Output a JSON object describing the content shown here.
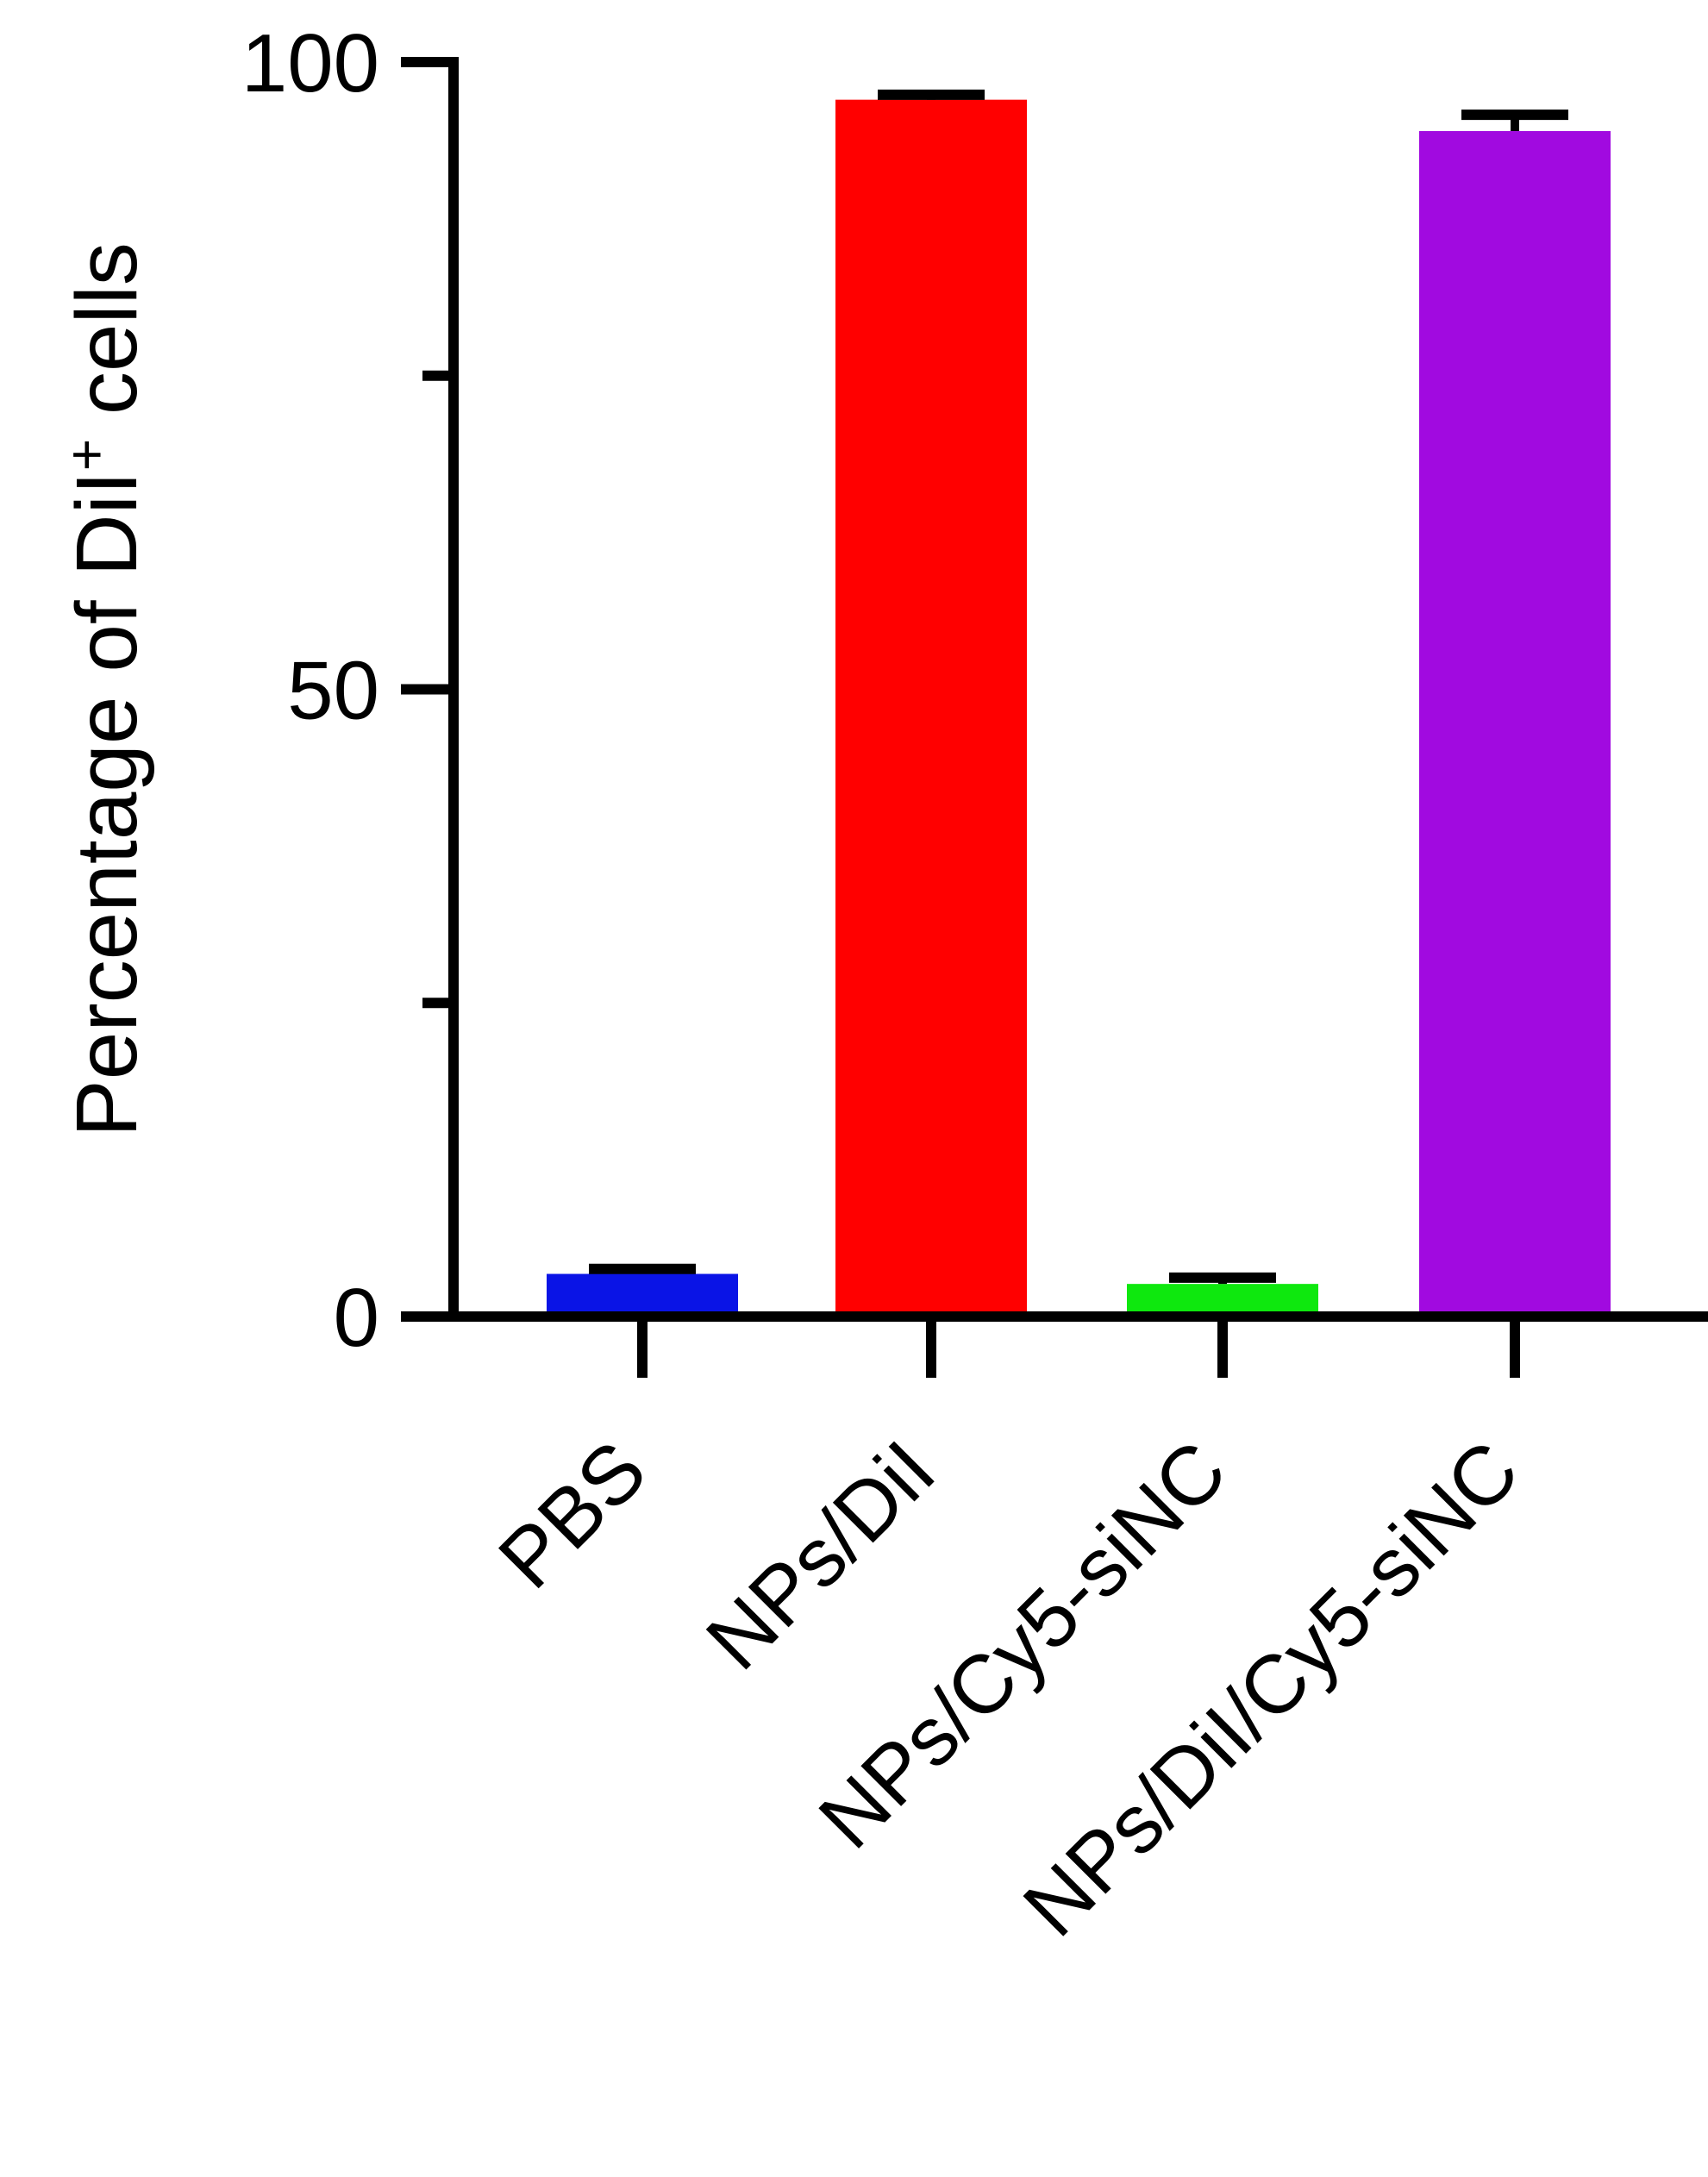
{
  "chart_data": {
    "type": "bar",
    "categories": [
      "PBS",
      "NPs/DiI",
      "NPs/Cy5-siNC",
      "NPs/DiI/Cy5-siNC"
    ],
    "values": [
      3.4,
      97.0,
      2.6,
      94.5
    ],
    "errors": [
      0.4,
      0.4,
      0.5,
      1.3
    ],
    "colors": [
      "#0a14e6",
      "#ff0000",
      "#0ee80e",
      "#a10ae0"
    ],
    "ylabel_main": "Percentage of DiI",
    "ylabel_superscript": "+",
    "ylabel_tail": " cells",
    "ylim": [
      0,
      100
    ],
    "major_ticks": [
      0,
      50,
      100
    ],
    "minor_ticks": [
      25,
      75
    ],
    "tick_labels": [
      "0",
      "50",
      "100"
    ],
    "grid": false,
    "legend": "none"
  }
}
